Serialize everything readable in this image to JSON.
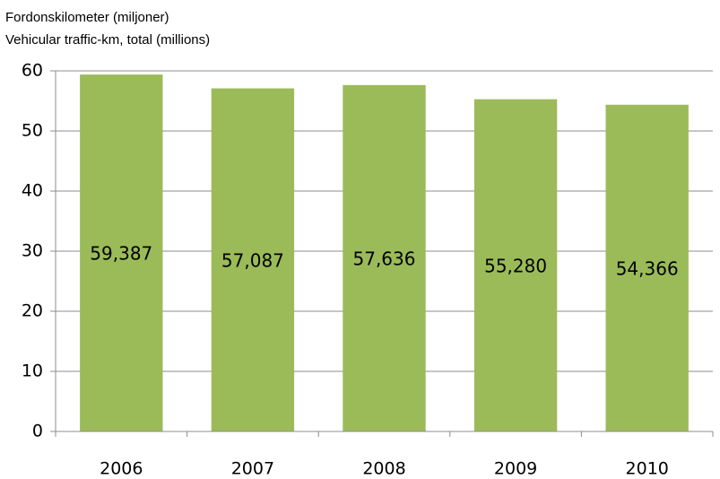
{
  "chart_data": {
    "type": "bar",
    "title": "Fordonskilometer (miljoner)",
    "subtitle": "Vehicular traffic-km, total (millions)",
    "categories": [
      "2006",
      "2007",
      "2008",
      "2009",
      "2010"
    ],
    "values": [
      59.387,
      57.087,
      57.636,
      55.28,
      54.366
    ],
    "value_labels": [
      "59,387",
      "57,087",
      "57,636",
      "55,280",
      "54,366"
    ],
    "color": "#9bbb59",
    "ylim": [
      0,
      60
    ],
    "yticks": [
      0,
      10,
      20,
      30,
      40,
      50,
      60
    ],
    "grid": true
  }
}
